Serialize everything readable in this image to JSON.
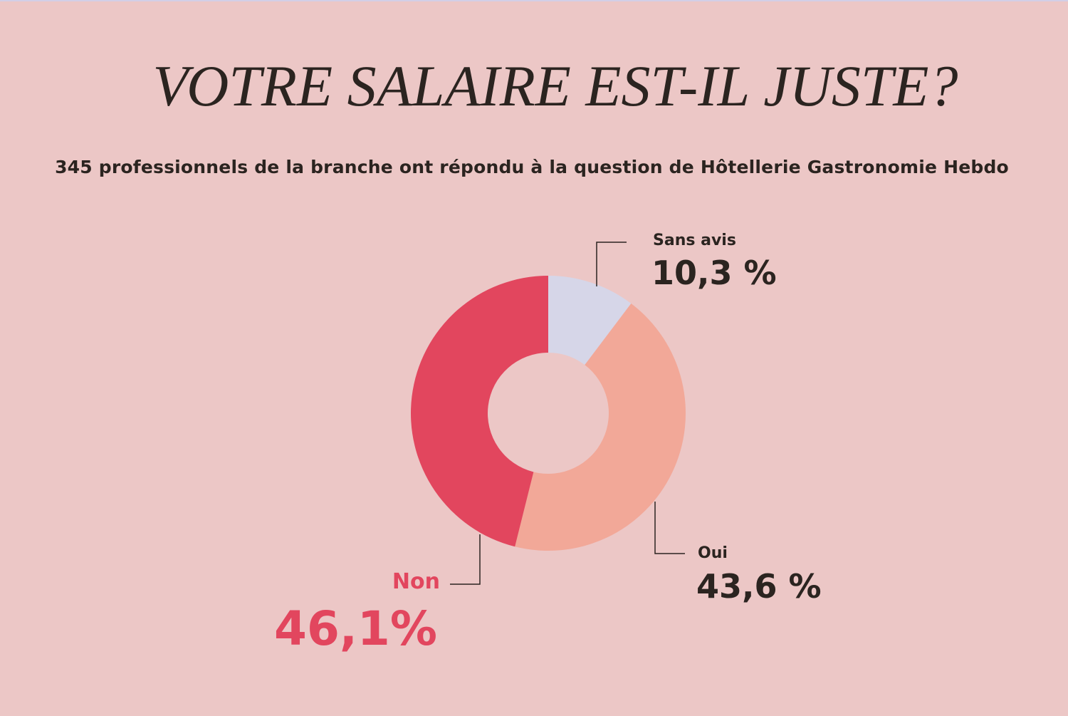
{
  "chart_data": {
    "type": "pie",
    "style": "donut",
    "title": "VOTRE SALAIRE EST-IL JUSTE?",
    "subtitle": "345 professionnels de la branche ont répondu à la question de Hôtellerie Gastronomie Hebdo",
    "slices": [
      {
        "label": "Sans avis",
        "value": 10.3,
        "value_label": "10,3 %",
        "color": "#d6d6e8"
      },
      {
        "label": "Oui",
        "value": 43.6,
        "value_label": "43,6 %",
        "color": "#f2a898"
      },
      {
        "label": "Non",
        "value": 46.1,
        "value_label": "46,1%",
        "color": "#e2465e"
      }
    ]
  },
  "colors": {
    "background": "#ecc7c6",
    "text_dark": "#2b2420",
    "accent_red": "#e2465e"
  }
}
